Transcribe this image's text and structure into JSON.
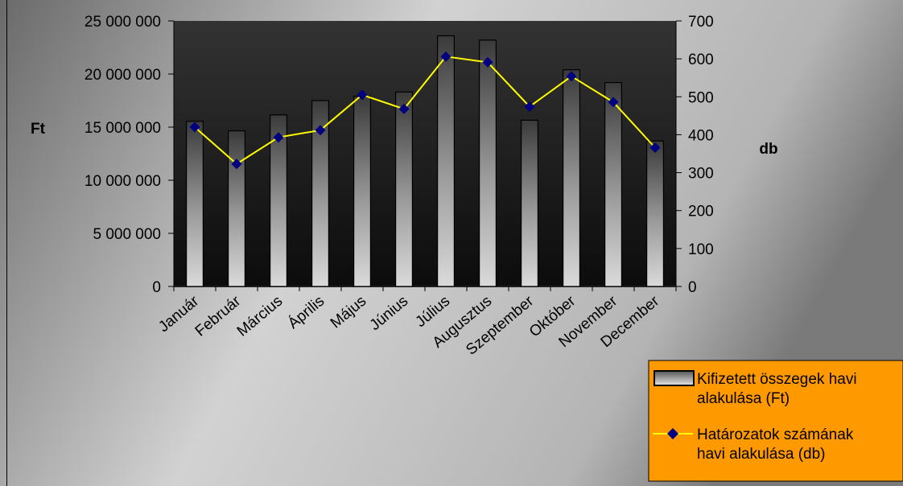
{
  "chart_data": {
    "type": "bar",
    "categories": [
      "Január",
      "Február",
      "Március",
      "Április",
      "Május",
      "Június",
      "Július",
      "Augusztus",
      "Szeptember",
      "Október",
      "November",
      "December"
    ],
    "series": [
      {
        "name": "Kifizetett összegek havi alakulása (Ft)",
        "type": "bar",
        "axis": "left",
        "values": [
          15550000,
          14650000,
          16150000,
          17500000,
          17900000,
          18300000,
          23600000,
          23200000,
          15650000,
          20400000,
          19200000,
          13700000
        ]
      },
      {
        "name": "Határozatok számának havi alakulása (db)",
        "type": "line",
        "axis": "right",
        "values": [
          420,
          323,
          393,
          412,
          505,
          468,
          606,
          591,
          474,
          554,
          486,
          366
        ]
      }
    ],
    "ylabel_left": "Ft",
    "ylabel_right": "db",
    "ylim_left": [
      0,
      25000000
    ],
    "ylim_right": [
      0,
      700
    ],
    "yticks_left": [
      "0",
      "5 000 000",
      "10 000 000",
      "15 000 000",
      "20 000 000",
      "25 000 000"
    ],
    "yticks_right": [
      "0",
      "100",
      "200",
      "300",
      "400",
      "500",
      "600",
      "700"
    ],
    "legend": {
      "placement": "bottom-right",
      "entries": [
        [
          "Kifizetett összegek havi",
          "alakulása (Ft)"
        ],
        [
          "Határozatok számának",
          "havi alakulása (db)"
        ]
      ]
    },
    "colors": {
      "plot_background_top": "#303030",
      "plot_background_bottom": "#101010",
      "line": "#FFFF00",
      "marker": "#000080",
      "legend_background": "#FF9900"
    }
  }
}
